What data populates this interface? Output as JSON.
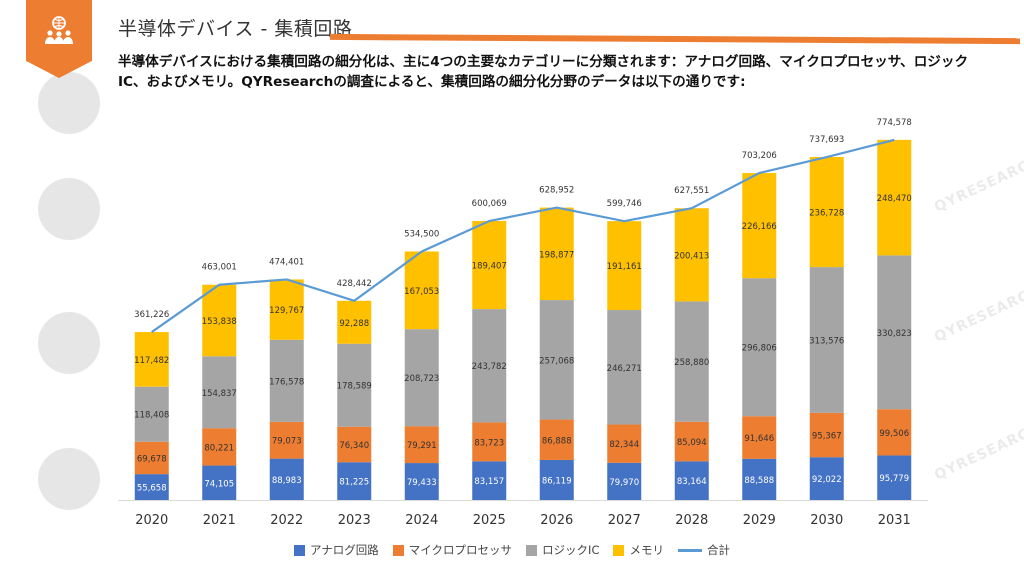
{
  "header": {
    "title": "半導体デバイス - 集積回路",
    "intro": "半導体デバイスにおける集積回路の細分化は、主に4つの主要なカテゴリーに分類されます：アナログ回路、マイクロプロセッサ、ロジックIC、およびメモリ。QYResearchの調査によると、集積回路の細分化分野のデータは以下の通りです:",
    "logo_icon": "people-network-icon",
    "accent_color": "#ed7d31"
  },
  "watermark": {
    "text": "QYRESEARCH",
    "color": "#ebebeb"
  },
  "chart_data": {
    "type": "bar",
    "stacked": true,
    "categories": [
      "2020",
      "2021",
      "2022",
      "2023",
      "2024",
      "2025",
      "2026",
      "2027",
      "2028",
      "2029",
      "2030",
      "2031"
    ],
    "series": [
      {
        "name": "アナログ回路",
        "color": "#4472c4",
        "values": [
          55658,
          74105,
          88983,
          81225,
          79433,
          83157,
          86119,
          79970,
          83164,
          88588,
          92022,
          95779
        ]
      },
      {
        "name": "マイクロプロセッサ",
        "color": "#ed7d31",
        "values": [
          69678,
          80221,
          79073,
          76340,
          79291,
          83723,
          86888,
          82344,
          85094,
          91646,
          95367,
          99506
        ]
      },
      {
        "name": "ロジックIC",
        "color": "#a5a5a5",
        "values": [
          118408,
          154837,
          176578,
          178589,
          208723,
          243782,
          257068,
          246271,
          258880,
          296806,
          313576,
          330823
        ]
      },
      {
        "name": "メモリ",
        "color": "#ffc000",
        "values": [
          117482,
          153838,
          129767,
          92288,
          167053,
          189407,
          198877,
          191161,
          200413,
          226166,
          236728,
          248470
        ]
      }
    ],
    "total": {
      "name": "合計",
      "type": "line",
      "color": "#5b9bd5",
      "values": [
        361226,
        463001,
        474401,
        428442,
        534500,
        600069,
        628952,
        599746,
        627551,
        703206,
        737693,
        774578
      ]
    },
    "ylim": [
      0,
      800000
    ],
    "grid": false,
    "legend_position": "bottom",
    "xlabel": "",
    "ylabel": ""
  }
}
